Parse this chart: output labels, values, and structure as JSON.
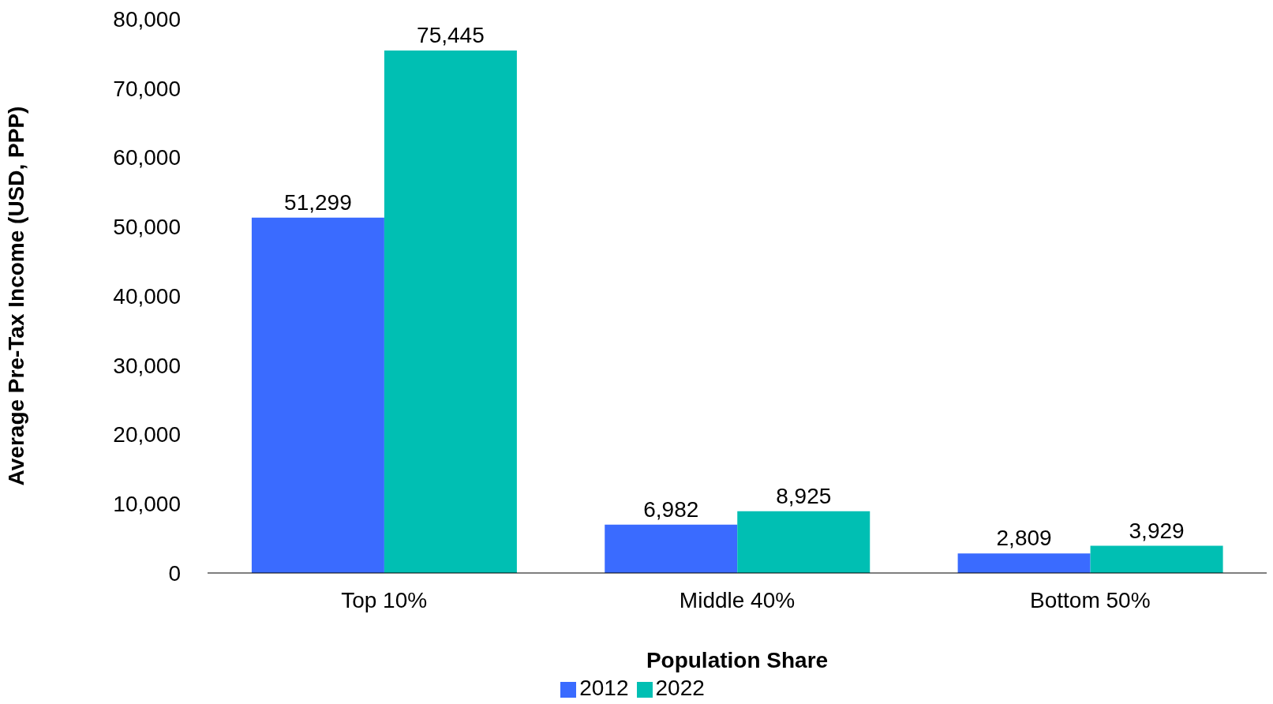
{
  "chart_data": {
    "type": "bar",
    "xlabel": "Population Share",
    "ylabel": "Average Pre-Tax Income (USD, PPP)",
    "categories": [
      "Top 10%",
      "Middle 40%",
      "Bottom 50%"
    ],
    "series": [
      {
        "name": "2012",
        "color": "#3a6bff",
        "values": [
          51299,
          6982,
          2809
        ],
        "value_labels": [
          "51,299",
          "6,982",
          "2,809"
        ]
      },
      {
        "name": "2022",
        "color": "#00bfb3",
        "values": [
          75445,
          8925,
          3929
        ],
        "value_labels": [
          "75,445",
          "8,925",
          "3,929"
        ]
      }
    ],
    "ylim": [
      0,
      80000
    ],
    "yticks": [
      {
        "value": 0,
        "label": "0"
      },
      {
        "value": 10000,
        "label": "10,000"
      },
      {
        "value": 20000,
        "label": "20,000"
      },
      {
        "value": 30000,
        "label": "30,000"
      },
      {
        "value": 40000,
        "label": "40,000"
      },
      {
        "value": 50000,
        "label": "50,000"
      },
      {
        "value": 60000,
        "label": "60,000"
      },
      {
        "value": 70000,
        "label": "70,000"
      },
      {
        "value": 80000,
        "label": "80,000"
      }
    ],
    "grid": false,
    "legend": "bottom"
  }
}
